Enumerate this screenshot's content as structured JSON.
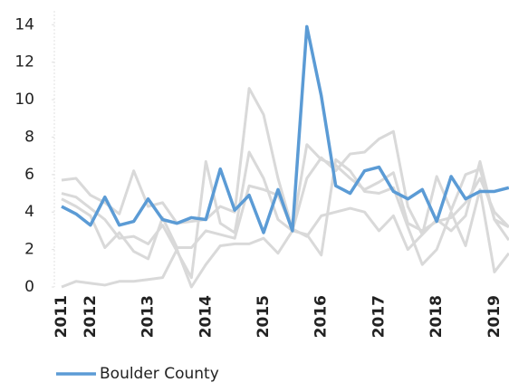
{
  "chart_data": {
    "type": "line",
    "categories": [
      "2011",
      null,
      "2012",
      null,
      null,
      null,
      "2013",
      null,
      null,
      null,
      "2014",
      null,
      null,
      null,
      "2015",
      null,
      null,
      null,
      "2016",
      null,
      null,
      null,
      "2017",
      null,
      null,
      null,
      "2018",
      null,
      null,
      null,
      "2019",
      null
    ],
    "series": [
      {
        "color": "#d9d9d9",
        "values": [
          5.7,
          5.8,
          4.9,
          4.5,
          3.9,
          6.2,
          4.3,
          4.5,
          3.4,
          3.5,
          3.6,
          4.3,
          4.0,
          10.6,
          9.2,
          5.8,
          3.1,
          7.6,
          6.8,
          6.5,
          5.8,
          5.2,
          5.6,
          6.1,
          3.4,
          3.0,
          3.5,
          3.7,
          4.5,
          5.8,
          4.0,
          3.2
        ]
      },
      {
        "color": "#d9d9d9",
        "values": [
          0,
          0.3,
          0.2,
          0.1,
          0.3,
          0.3,
          0.4,
          0.5,
          2.0,
          0,
          1.2,
          2.2,
          2.3,
          2.3,
          2.6,
          1.8,
          3.0,
          2.8,
          1.7,
          6.8,
          6.2,
          5.1,
          5.0,
          5.3,
          3.2,
          1.2,
          2.0,
          4.0,
          2.2,
          5.2,
          0.8,
          1.8
        ]
      },
      {
        "color": "#d9d9d9",
        "values": [
          5.0,
          4.8,
          4.2,
          3.6,
          2.6,
          2.7,
          2.3,
          3.3,
          1.9,
          0.5,
          6.7,
          3.4,
          2.9,
          7.2,
          5.8,
          3.6,
          3.0,
          5.8,
          6.9,
          6.2,
          7.1,
          7.2,
          7.9,
          8.3,
          4.3,
          2.8,
          5.9,
          4.1,
          6.0,
          6.3,
          3.6,
          2.5
        ]
      },
      {
        "color": "#d9d9d9",
        "values": [
          4.7,
          4.3,
          3.8,
          2.1,
          2.9,
          1.9,
          1.5,
          3.7,
          2.1,
          2.1,
          3.0,
          2.8,
          2.6,
          5.4,
          5.2,
          4.9,
          3.1,
          2.7,
          3.8,
          4.0,
          4.2,
          4.0,
          3.0,
          3.8,
          2.0,
          2.8,
          3.6,
          3.0,
          3.8,
          6.7,
          3.6,
          3.2
        ]
      },
      {
        "name": "Boulder County",
        "color": "#5b9bd5",
        "values": [
          4.3,
          3.9,
          3.3,
          4.8,
          3.3,
          3.5,
          4.7,
          3.6,
          3.4,
          3.7,
          3.6,
          6.3,
          4.1,
          4.9,
          2.9,
          5.2,
          3.0,
          13.9,
          10.2,
          5.4,
          5.0,
          6.2,
          6.4,
          5.1,
          4.7,
          5.2,
          3.5,
          5.9,
          4.7,
          5.1,
          5.1,
          5.3
        ]
      }
    ],
    "ylim": [
      0,
      14.4
    ],
    "yticks": [
      0,
      2,
      4,
      6,
      8,
      10,
      12,
      14
    ]
  }
}
